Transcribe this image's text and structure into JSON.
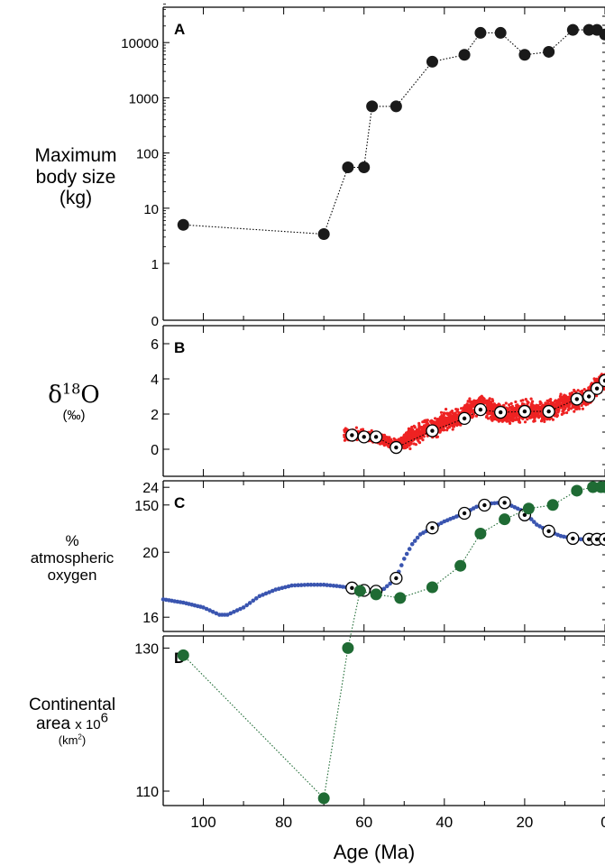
{
  "chart_data": [
    {
      "panel": "A",
      "type": "scatter",
      "ylabel_lines": [
        "Maximum",
        "body size",
        "(kg)"
      ],
      "yscale": "log",
      "xlim": [
        110,
        0
      ],
      "yticks": [
        0,
        1,
        10,
        100,
        1000,
        10000
      ],
      "x": [
        105,
        70,
        64,
        60,
        58,
        52,
        43,
        35,
        31,
        26,
        20,
        14,
        8,
        4,
        2,
        0
      ],
      "values": [
        5,
        3.4,
        55,
        55,
        700,
        700,
        4500,
        6000,
        15000,
        15000,
        6000,
        6800,
        17000,
        17000,
        17000,
        14000
      ],
      "line": "dotted",
      "color": "#1a1a1a"
    },
    {
      "panel": "B",
      "type": "scatter",
      "ylabel": "δ",
      "ylabel_sup": "18",
      "ylabel_tail": "O",
      "ylabel_unit": "(‰)",
      "xlim": [
        110,
        0
      ],
      "ylim": [
        -0.6,
        6.6
      ],
      "yticks": [
        0,
        2,
        4,
        6
      ],
      "x": [
        63,
        60,
        57,
        52,
        43,
        35,
        31,
        26,
        20,
        14,
        7,
        4,
        2,
        0
      ],
      "values": [
        0.8,
        0.7,
        0.7,
        0.1,
        1.05,
        1.75,
        2.25,
        2.1,
        2.15,
        2.15,
        2.85,
        3.0,
        3.45,
        3.9
      ],
      "raw_scatter_color": "#ee2222",
      "raw_band": {
        "x": [
          65,
          62,
          58,
          55,
          52,
          50,
          48,
          45,
          42,
          40,
          37,
          34,
          31,
          28,
          25,
          22,
          19,
          16,
          13,
          10,
          7,
          4,
          2,
          0
        ],
        "values": [
          0.8,
          0.8,
          0.7,
          0.5,
          0.2,
          0.4,
          0.8,
          1.1,
          1.2,
          1.6,
          1.7,
          2.2,
          2.6,
          2.2,
          2.0,
          2.1,
          2.2,
          2.2,
          2.3,
          2.6,
          2.8,
          3.1,
          3.5,
          4.0
        ]
      },
      "line": "dotted"
    },
    {
      "panel": "C",
      "type": "line",
      "ylabel_lines": [
        "%",
        "atmospheric",
        "oxygen"
      ],
      "xlim": [
        110,
        0
      ],
      "ylim": [
        15.4,
        24.4
      ],
      "yticks": [
        16,
        20,
        24
      ],
      "curve": {
        "x": [
          110,
          105,
          100,
          96,
          94,
          90,
          86,
          82,
          78,
          74,
          70,
          66,
          63,
          60,
          57,
          55,
          52,
          50,
          48,
          46,
          43,
          40,
          37,
          35,
          32,
          29,
          26,
          24,
          21,
          19,
          17,
          14,
          11,
          8,
          6,
          4,
          2,
          0
        ],
        "values": [
          17.1,
          16.9,
          16.6,
          16.15,
          16.15,
          16.6,
          17.3,
          17.7,
          17.95,
          18.0,
          18.0,
          17.9,
          17.8,
          17.65,
          17.6,
          17.75,
          18.4,
          19.6,
          20.5,
          21.1,
          21.5,
          21.9,
          22.2,
          22.4,
          22.8,
          23.0,
          23.05,
          22.95,
          22.6,
          22.2,
          21.7,
          21.3,
          21.0,
          20.85,
          20.8,
          20.8,
          20.8,
          20.8
        ]
      },
      "x": [
        63,
        60,
        57,
        52,
        43,
        35,
        30,
        25,
        20,
        14,
        8,
        4,
        2,
        0
      ],
      "values": [
        17.8,
        17.65,
        17.6,
        18.4,
        21.5,
        22.4,
        22.9,
        23.05,
        22.3,
        21.3,
        20.85,
        20.8,
        20.8,
        20.8
      ],
      "color": "#3a55b0"
    },
    {
      "panel": "D",
      "type": "scatter",
      "ylabel_lines": [
        "Continental",
        "area x 10",
        "(km",
        ")"
      ],
      "ylabel_sup_1": "6",
      "ylabel_sup_2": "2",
      "xlabel": "Age (Ma)",
      "xlim": [
        110,
        0
      ],
      "ylim": [
        105,
        157
      ],
      "yticks": [
        110,
        130,
        150
      ],
      "xticks": [
        100,
        80,
        60,
        40,
        20,
        0
      ],
      "x": [
        105,
        70,
        64,
        61,
        57,
        51,
        43,
        36,
        31,
        25,
        19,
        13,
        7,
        3,
        1,
        0
      ],
      "values": [
        129,
        109,
        130,
        138,
        137.5,
        137,
        138.5,
        141.5,
        146,
        148,
        149.5,
        150,
        152,
        152.5,
        152.5,
        152.5
      ],
      "line": "dotted",
      "color": "#1f6b34"
    }
  ],
  "labels": {
    "a_line1": "Maximum",
    "a_line2": "body size",
    "a_line3": "(kg)",
    "b_delta": "δ",
    "b_sup": "18",
    "b_o": "O",
    "b_unit": "(‰)",
    "c_line1": "%",
    "c_line2": "atmospheric",
    "c_line3": "oxygen",
    "d_line1": "Continental",
    "d_line2": "area",
    "d_times": "x 10",
    "d_sup": "6",
    "d_unit_open": "(km",
    "d_unit_sup": "2",
    "d_unit_close": ")"
  }
}
